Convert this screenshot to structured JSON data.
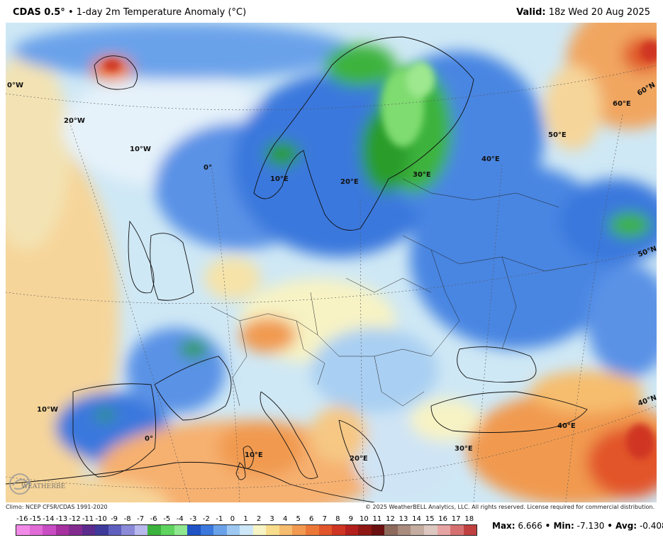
{
  "header": {
    "product": "CDAS 0.5°",
    "description": "• 1-day 2m Temperature Anomaly (°C)",
    "valid_label": "Valid:",
    "valid_value": "18z Wed 20 Aug 2025"
  },
  "map": {
    "grid_labels": [
      "0°W",
      "20°W",
      "10°W",
      "0°",
      "10°E",
      "20°E",
      "30°E",
      "40°E",
      "50°E",
      "60°E",
      "60°N",
      "50°N",
      "40°N",
      "40°E",
      "30°E",
      "20°E",
      "10°E",
      "0°",
      "10°W"
    ]
  },
  "logo": {
    "text": "WEATHERBELL"
  },
  "footer": {
    "climo": "Climo: NCEP CFSR/CDAS 1991-2020",
    "copyright": "© 2025 WeatherBELL Analytics, LLC. All rights reserved. License required for commercial distribution."
  },
  "colorbar": {
    "ticks": [
      "-16",
      "-15",
      "-14",
      "-13",
      "-12",
      "-11",
      "-10",
      "-9",
      "-8",
      "-7",
      "-6",
      "-5",
      "-4",
      "-3",
      "-2",
      "-1",
      "0",
      "1",
      "2",
      "3",
      "4",
      "5",
      "6",
      "7",
      "8",
      "9",
      "10",
      "11",
      "12",
      "13",
      "14",
      "15",
      "16",
      "17",
      "18"
    ],
    "colors": [
      "#f28be8",
      "#e06bd6",
      "#c84cc2",
      "#a6309f",
      "#832a8e",
      "#5b2b8e",
      "#3e3a9c",
      "#5f5fc0",
      "#8a8ad8",
      "#b9b9ee",
      "#3cb33c",
      "#5ed35e",
      "#8fe88f",
      "#1f52c4",
      "#3a78dd",
      "#6aa2ea",
      "#9cc8f2",
      "#cde6f8",
      "#f7f3c4",
      "#f8dd8c",
      "#f6bd6e",
      "#f19a50",
      "#ec7838",
      "#e2552a",
      "#cf3523",
      "#b21f1c",
      "#8e1714",
      "#6a1010",
      "#8d6a5c",
      "#a98c7e",
      "#c4aca0",
      "#dcc8c0",
      "#e7a4a4",
      "#d67070",
      "#c04040"
    ]
  },
  "stats": {
    "max_label": "Max:",
    "max_value": "6.666",
    "min_label": "• Min:",
    "min_value": "-7.130",
    "avg_label": "• Avg:",
    "avg_value": "-0.408"
  }
}
